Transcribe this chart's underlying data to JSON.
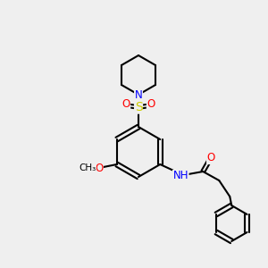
{
  "background_color": "#efefef",
  "figsize": [
    3.0,
    3.0
  ],
  "dpi": 100,
  "bond_color": "#000000",
  "bond_width": 1.5,
  "atom_colors": {
    "N": "#0000ff",
    "O": "#ff0000",
    "S": "#cccc00",
    "C": "#000000",
    "H": "#444444"
  },
  "font_size": 8.5
}
